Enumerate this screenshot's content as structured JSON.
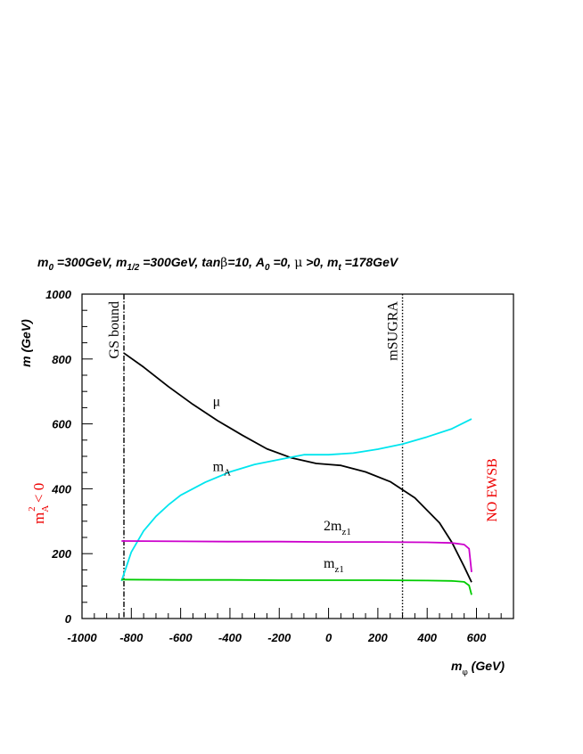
{
  "chart_data": {
    "type": "line",
    "title_parts": {
      "m0": "m",
      "m0_sub": "0",
      "m0_val": " =300GeV, ",
      "mh": "m",
      "mh_sub": "1/2",
      "mh_val": " =300GeV, ",
      "tanb": "tan",
      "beta": "β",
      "tanb_val": "=10, ",
      "a0": "A",
      "a0_sub": "0",
      "a0_val": " =0, ",
      "mu": "μ",
      "mu_val": " >0, ",
      "mt": "m",
      "mt_sub": "t",
      "mt_val": " =178GeV"
    },
    "ylabel": "m (GeV)",
    "xlabel_main": "m",
    "xlabel_sub": "φ",
    "xlabel_unit": " (GeV)",
    "xlim": [
      -1000,
      750
    ],
    "ylim": [
      0,
      1000
    ],
    "xticks": [
      -1000,
      -800,
      -600,
      -400,
      -200,
      0,
      200,
      400,
      600
    ],
    "yticks": [
      0,
      200,
      400,
      600,
      800,
      1000
    ],
    "colors": {
      "mu": "#000000",
      "mA": "#00e5ee",
      "two_mz1": "#cc00cc",
      "mz1": "#00cc00",
      "annot_red": "#ee0000"
    },
    "series": [
      {
        "key": "mu",
        "x": [
          -830,
          -750,
          -650,
          -550,
          -450,
          -350,
          -250,
          -150,
          -50,
          0,
          50,
          150,
          250,
          350,
          450,
          500,
          550,
          580
        ],
        "y": [
          818,
          775,
          715,
          660,
          610,
          565,
          523,
          495,
          478,
          475,
          472,
          452,
          422,
          372,
          295,
          235,
          160,
          112
        ]
      },
      {
        "key": "mA",
        "x": [
          -840,
          -820,
          -800,
          -750,
          -700,
          -650,
          -600,
          -500,
          -400,
          -300,
          -200,
          -100,
          0,
          100,
          200,
          300,
          400,
          500,
          580
        ],
        "y": [
          116,
          160,
          205,
          270,
          315,
          350,
          380,
          420,
          452,
          475,
          490,
          505,
          505,
          510,
          522,
          538,
          560,
          585,
          615
        ]
      },
      {
        "key": "two_mz1",
        "x": [
          -840,
          -600,
          -400,
          -200,
          0,
          200,
          400,
          500,
          550,
          570,
          580
        ],
        "y": [
          239,
          238,
          237,
          237,
          236,
          236,
          235,
          233,
          228,
          215,
          143
        ]
      },
      {
        "key": "mz1",
        "x": [
          -840,
          -600,
          -400,
          -200,
          0,
          200,
          400,
          500,
          550,
          570,
          580
        ],
        "y": [
          120,
          119,
          119,
          118,
          118,
          118,
          117,
          116,
          113,
          102,
          73
        ]
      }
    ],
    "vlines": [
      {
        "key": "gs",
        "x": -830,
        "label": "GS bound",
        "style": "dashdot"
      },
      {
        "key": "msugra",
        "x": 300,
        "label": "mSUGRA",
        "style": "dotted"
      }
    ],
    "curve_labels": [
      {
        "key": "mu",
        "main": "μ",
        "sub": "",
        "x": -470,
        "y": 655
      },
      {
        "key": "mA",
        "main": "m",
        "sub": "A",
        "x": -470,
        "y": 455
      },
      {
        "key": "two_mz1",
        "main": "2m",
        "sub": "z1",
        "x": -20,
        "y": 272
      },
      {
        "key": "mz1",
        "main": "m",
        "sub": "z1",
        "x": -20,
        "y": 157
      }
    ],
    "side_labels": {
      "left_main": "m",
      "left_sub": "A",
      "left_sup": "2",
      "left_rest": " < 0",
      "right": "NO EWSB"
    }
  }
}
